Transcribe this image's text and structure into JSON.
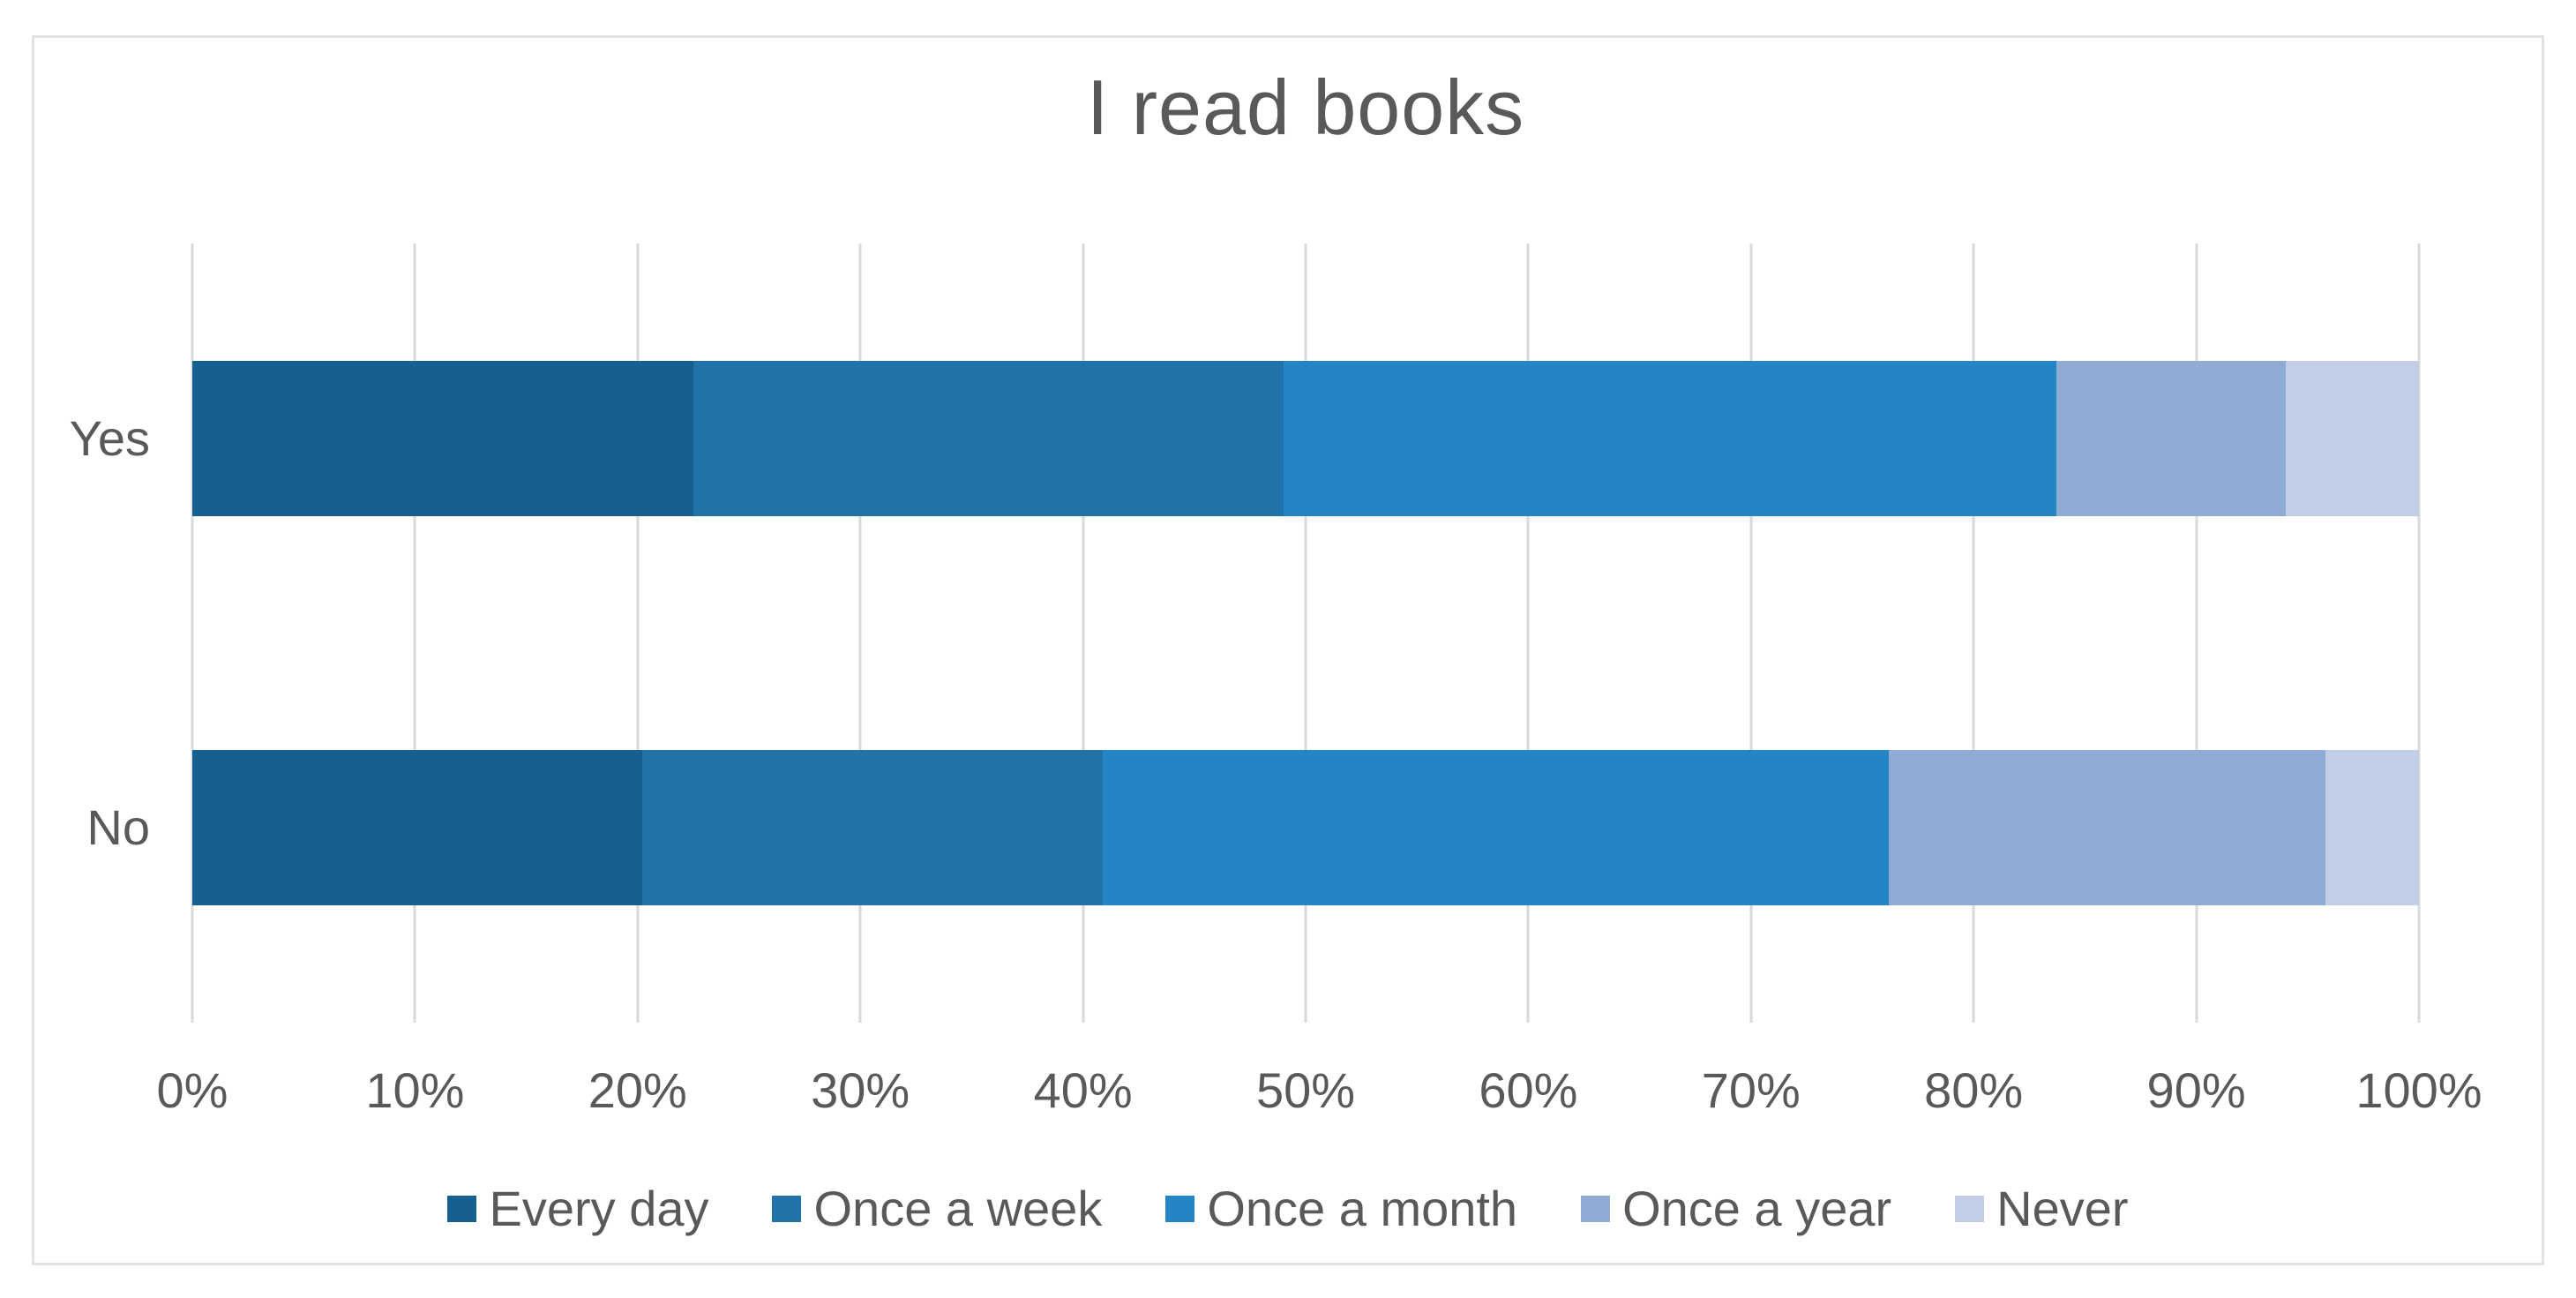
{
  "title": "I read books",
  "chart_data": {
    "type": "bar",
    "orientation": "horizontal",
    "stacked": true,
    "unit": "percent",
    "title": "I read books",
    "categories": [
      "Yes",
      "No"
    ],
    "series": [
      {
        "name": "Every day",
        "color": "#15608F",
        "values": [
          22.5,
          20.2
        ]
      },
      {
        "name": "Once a week",
        "color": "#2173A9",
        "values": [
          26.5,
          20.7
        ]
      },
      {
        "name": "Once a month",
        "color": "#2484C6",
        "values": [
          34.7,
          35.3
        ]
      },
      {
        "name": "Once a year",
        "color": "#8EACD4",
        "values": [
          10.3,
          19.6
        ]
      },
      {
        "name": "Never",
        "color": "#C1CEE5",
        "values": [
          6.0,
          4.2
        ]
      }
    ],
    "x_axis": {
      "min": 0,
      "max": 100,
      "tick_step": 10,
      "tick_labels": [
        "0%",
        "10%",
        "20%",
        "30%",
        "40%",
        "50%",
        "60%",
        "70%",
        "80%",
        "90%",
        "100%"
      ]
    },
    "grid": "vertical",
    "legend": {
      "position": "bottom",
      "entries": [
        "Every day",
        "Once a week",
        "Once a month",
        "Once a year",
        "Never"
      ]
    },
    "colors": {
      "text": "#595959",
      "gridline": "#D9D9D9",
      "frame_border": "#E2E2E2",
      "background": "#FFFFFF"
    }
  }
}
